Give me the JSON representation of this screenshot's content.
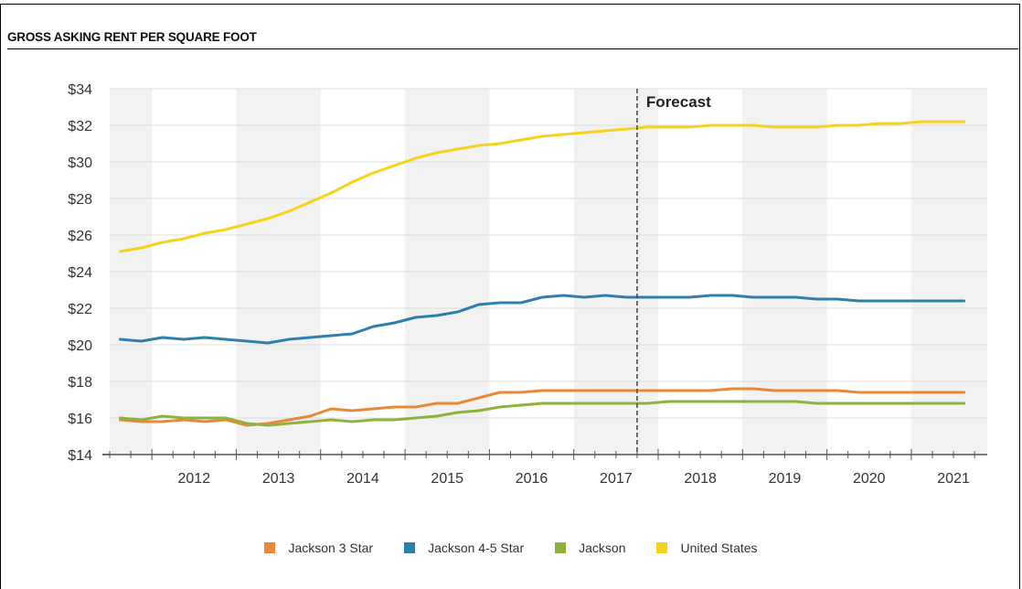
{
  "title": "GROSS ASKING RENT PER SQUARE FOOT",
  "forecast_label": "Forecast",
  "chart_data": {
    "type": "line",
    "title": "GROSS ASKING RENT PER SQUARE FOOT",
    "xlabel": "",
    "ylabel": "",
    "categories": [
      "2012",
      "2013",
      "2014",
      "2015",
      "2016",
      "2017",
      "2018",
      "2019",
      "2020",
      "2021"
    ],
    "x": [
      2011.625,
      2011.875,
      2012.125,
      2012.375,
      2012.625,
      2012.875,
      2013.125,
      2013.375,
      2013.625,
      2013.875,
      2014.125,
      2014.375,
      2014.625,
      2014.875,
      2015.125,
      2015.375,
      2015.625,
      2015.875,
      2016.125,
      2016.375,
      2016.625,
      2016.875,
      2017.125,
      2017.375,
      2017.625,
      2017.875,
      2018.125,
      2018.375,
      2018.625,
      2018.875,
      2019.125,
      2019.375,
      2019.625,
      2019.875,
      2020.125,
      2020.375,
      2020.625,
      2020.875,
      2021.125,
      2021.375,
      2021.625
    ],
    "ylim": [
      14,
      34
    ],
    "y_ticks": [
      "$14",
      "$16",
      "$18",
      "$20",
      "$22",
      "$24",
      "$26",
      "$28",
      "$30",
      "$32",
      "$34"
    ],
    "y_tick_values": [
      14,
      16,
      18,
      20,
      22,
      24,
      26,
      28,
      30,
      32,
      34
    ],
    "forecast_start": 2017.75,
    "grid": true,
    "legend_position": "bottom",
    "series": [
      {
        "name": "Jackson 3 Star",
        "color": "#e8893a",
        "values": [
          15.9,
          15.8,
          15.8,
          15.9,
          15.8,
          15.9,
          15.6,
          15.7,
          15.9,
          16.1,
          16.5,
          16.4,
          16.5,
          16.6,
          16.6,
          16.8,
          16.8,
          17.1,
          17.4,
          17.4,
          17.5,
          17.5,
          17.5,
          17.5,
          17.5,
          17.5,
          17.5,
          17.5,
          17.5,
          17.6,
          17.6,
          17.5,
          17.5,
          17.5,
          17.5,
          17.4,
          17.4,
          17.4,
          17.4,
          17.4,
          17.4
        ]
      },
      {
        "name": "Jackson 4-5 Star",
        "color": "#2e7fae",
        "values": [
          20.3,
          20.2,
          20.4,
          20.3,
          20.4,
          20.3,
          20.2,
          20.1,
          20.3,
          20.4,
          20.5,
          20.6,
          21.0,
          21.2,
          21.5,
          21.6,
          21.8,
          22.2,
          22.3,
          22.3,
          22.6,
          22.7,
          22.6,
          22.7,
          22.6,
          22.6,
          22.6,
          22.6,
          22.7,
          22.7,
          22.6,
          22.6,
          22.6,
          22.5,
          22.5,
          22.4,
          22.4,
          22.4,
          22.4,
          22.4,
          22.4
        ]
      },
      {
        "name": "Jackson",
        "color": "#8fb23f",
        "values": [
          16.0,
          15.9,
          16.1,
          16.0,
          16.0,
          16.0,
          15.7,
          15.6,
          15.7,
          15.8,
          15.9,
          15.8,
          15.9,
          15.9,
          16.0,
          16.1,
          16.3,
          16.4,
          16.6,
          16.7,
          16.8,
          16.8,
          16.8,
          16.8,
          16.8,
          16.8,
          16.9,
          16.9,
          16.9,
          16.9,
          16.9,
          16.9,
          16.9,
          16.8,
          16.8,
          16.8,
          16.8,
          16.8,
          16.8,
          16.8,
          16.8
        ]
      },
      {
        "name": "United States",
        "color": "#f5d31c",
        "values": [
          25.1,
          25.3,
          25.6,
          25.8,
          26.1,
          26.3,
          26.6,
          26.9,
          27.3,
          27.8,
          28.3,
          28.9,
          29.4,
          29.8,
          30.2,
          30.5,
          30.7,
          30.9,
          31.0,
          31.2,
          31.4,
          31.5,
          31.6,
          31.7,
          31.8,
          31.9,
          31.9,
          31.9,
          32.0,
          32.0,
          32.0,
          31.9,
          31.9,
          31.9,
          32.0,
          32.0,
          32.1,
          32.1,
          32.2,
          32.2,
          32.2
        ]
      }
    ]
  }
}
